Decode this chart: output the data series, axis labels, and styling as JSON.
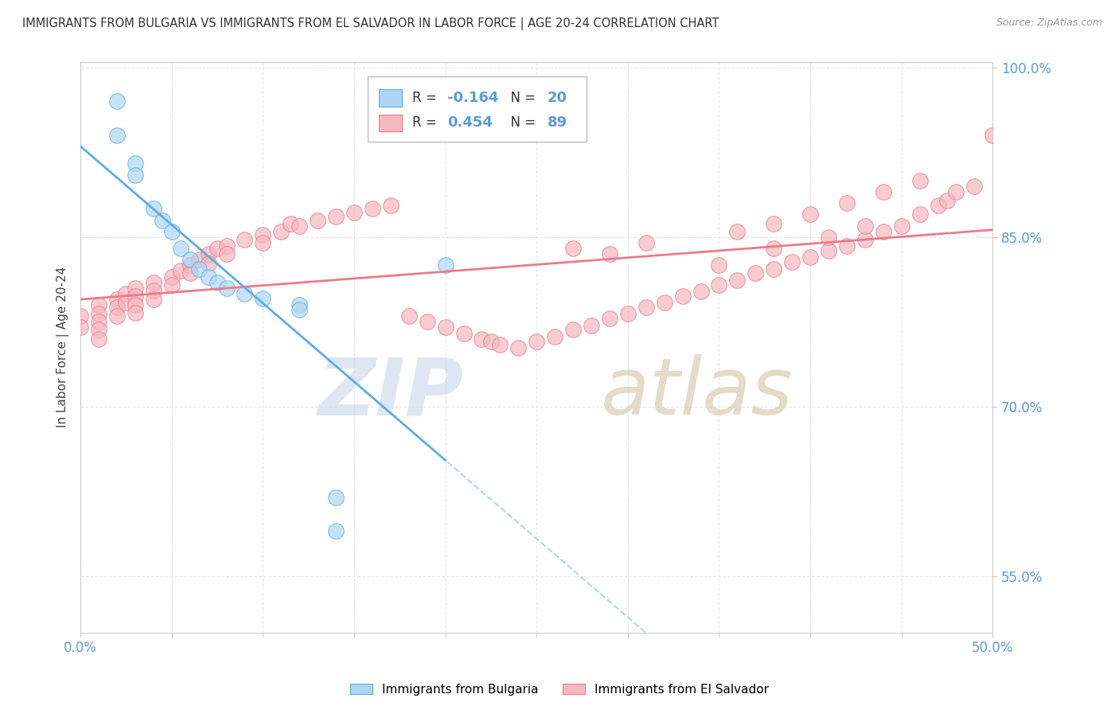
{
  "title": "IMMIGRANTS FROM BULGARIA VS IMMIGRANTS FROM EL SALVADOR IN LABOR FORCE | AGE 20-24 CORRELATION CHART",
  "source": "Source: ZipAtlas.com",
  "ylabel": "In Labor Force | Age 20-24",
  "xlim": [
    0.0,
    0.5
  ],
  "ylim": [
    0.5,
    1.005
  ],
  "ytick_positions": [
    0.55,
    0.7,
    0.85,
    1.0
  ],
  "ytick_labels": [
    "55.0%",
    "70.0%",
    "85.0%",
    "100.0%"
  ],
  "xtick_positions": [
    0.0,
    0.05,
    0.1,
    0.15,
    0.2,
    0.25,
    0.3,
    0.35,
    0.4,
    0.45,
    0.5
  ],
  "xtick_labels": [
    "0.0%",
    "",
    "",
    "",
    "",
    "",
    "",
    "",
    "",
    "",
    "50.0%"
  ],
  "legend_r_bulgaria": "-0.164",
  "legend_n_bulgaria": "20",
  "legend_r_elsalvador": "0.454",
  "legend_n_elsalvador": "89",
  "color_bulgaria": "#aed6f1",
  "color_elsalvador": "#f5b7c0",
  "trendline_bulgaria": "#5dade2",
  "trendline_elsalvador": "#ec7a8a",
  "trendline_dashed_color": "#aed6f1",
  "bg_color": "#ffffff",
  "grid_color": "#e8e8e8",
  "tick_color": "#5b9bd5",
  "bulgaria_scatter_x": [
    0.02,
    0.02,
    0.03,
    0.03,
    0.04,
    0.045,
    0.05,
    0.055,
    0.06,
    0.065,
    0.07,
    0.075,
    0.08,
    0.09,
    0.1,
    0.12,
    0.12,
    0.14,
    0.14,
    0.2
  ],
  "bulgaria_scatter_y": [
    0.97,
    0.94,
    0.915,
    0.905,
    0.875,
    0.865,
    0.855,
    0.84,
    0.83,
    0.822,
    0.815,
    0.81,
    0.805,
    0.8,
    0.796,
    0.79,
    0.786,
    0.62,
    0.59,
    0.825
  ],
  "elsalvador_scatter_x": [
    0.0,
    0.0,
    0.01,
    0.01,
    0.01,
    0.01,
    0.01,
    0.02,
    0.02,
    0.02,
    0.025,
    0.025,
    0.03,
    0.03,
    0.03,
    0.03,
    0.04,
    0.04,
    0.04,
    0.05,
    0.05,
    0.055,
    0.06,
    0.06,
    0.065,
    0.07,
    0.07,
    0.075,
    0.08,
    0.08,
    0.09,
    0.1,
    0.1,
    0.11,
    0.115,
    0.12,
    0.13,
    0.14,
    0.15,
    0.16,
    0.17,
    0.18,
    0.19,
    0.2,
    0.21,
    0.22,
    0.225,
    0.23,
    0.24,
    0.25,
    0.26,
    0.27,
    0.28,
    0.29,
    0.3,
    0.31,
    0.32,
    0.33,
    0.34,
    0.35,
    0.36,
    0.37,
    0.38,
    0.39,
    0.4,
    0.41,
    0.42,
    0.43,
    0.44,
    0.45,
    0.46,
    0.47,
    0.475,
    0.48,
    0.49,
    0.5,
    0.27,
    0.29,
    0.31,
    0.36,
    0.38,
    0.4,
    0.42,
    0.44,
    0.46,
    0.35,
    0.38,
    0.41,
    0.43
  ],
  "elsalvador_scatter_y": [
    0.78,
    0.77,
    0.79,
    0.782,
    0.775,
    0.768,
    0.76,
    0.795,
    0.788,
    0.78,
    0.8,
    0.792,
    0.805,
    0.798,
    0.79,
    0.783,
    0.81,
    0.803,
    0.795,
    0.815,
    0.808,
    0.82,
    0.825,
    0.818,
    0.83,
    0.835,
    0.827,
    0.84,
    0.842,
    0.835,
    0.848,
    0.852,
    0.845,
    0.855,
    0.862,
    0.86,
    0.865,
    0.868,
    0.872,
    0.875,
    0.878,
    0.78,
    0.775,
    0.77,
    0.765,
    0.76,
    0.758,
    0.755,
    0.752,
    0.758,
    0.762,
    0.768,
    0.772,
    0.778,
    0.782,
    0.788,
    0.792,
    0.798,
    0.802,
    0.808,
    0.812,
    0.818,
    0.822,
    0.828,
    0.832,
    0.838,
    0.842,
    0.848,
    0.855,
    0.86,
    0.87,
    0.878,
    0.882,
    0.89,
    0.895,
    0.94,
    0.84,
    0.835,
    0.845,
    0.855,
    0.862,
    0.87,
    0.88,
    0.89,
    0.9,
    0.825,
    0.84,
    0.85,
    0.86
  ],
  "watermark_zip_color": "#c8d8e8",
  "watermark_atlas_color": "#d4c4a8"
}
